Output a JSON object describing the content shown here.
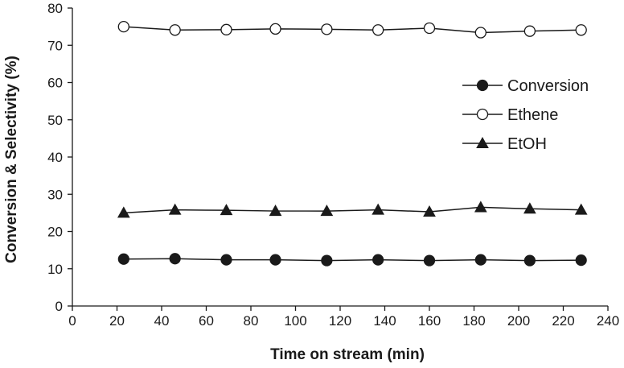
{
  "chart_data": {
    "type": "line",
    "title": "",
    "xlabel": "Time on stream (min)",
    "ylabel": "Conversion & Selectivity (%)",
    "xlim": [
      0,
      240
    ],
    "ylim": [
      0,
      80
    ],
    "xticks": [
      0,
      20,
      40,
      60,
      80,
      100,
      120,
      140,
      160,
      180,
      200,
      220,
      240
    ],
    "yticks": [
      0,
      10,
      20,
      30,
      40,
      50,
      60,
      70,
      80
    ],
    "grid": false,
    "legend": "right",
    "x": [
      23,
      46,
      69,
      91,
      114,
      137,
      160,
      183,
      205,
      228
    ],
    "series": [
      {
        "name": "Conversion",
        "marker": "filled-circle",
        "values": [
          12.6,
          12.7,
          12.4,
          12.4,
          12.2,
          12.4,
          12.2,
          12.4,
          12.2,
          12.3
        ]
      },
      {
        "name": "Ethene",
        "marker": "open-circle",
        "values": [
          75.0,
          74.1,
          74.2,
          74.4,
          74.3,
          74.1,
          74.6,
          73.4,
          73.8,
          74.1
        ]
      },
      {
        "name": "EtOH",
        "marker": "filled-triangle",
        "values": [
          25.0,
          25.8,
          25.7,
          25.5,
          25.5,
          25.8,
          25.3,
          26.5,
          26.1,
          25.8
        ]
      }
    ],
    "colors": {
      "line": "#1a1a1a",
      "marker": "#1a1a1a",
      "open_fill": "#ffffff"
    }
  }
}
